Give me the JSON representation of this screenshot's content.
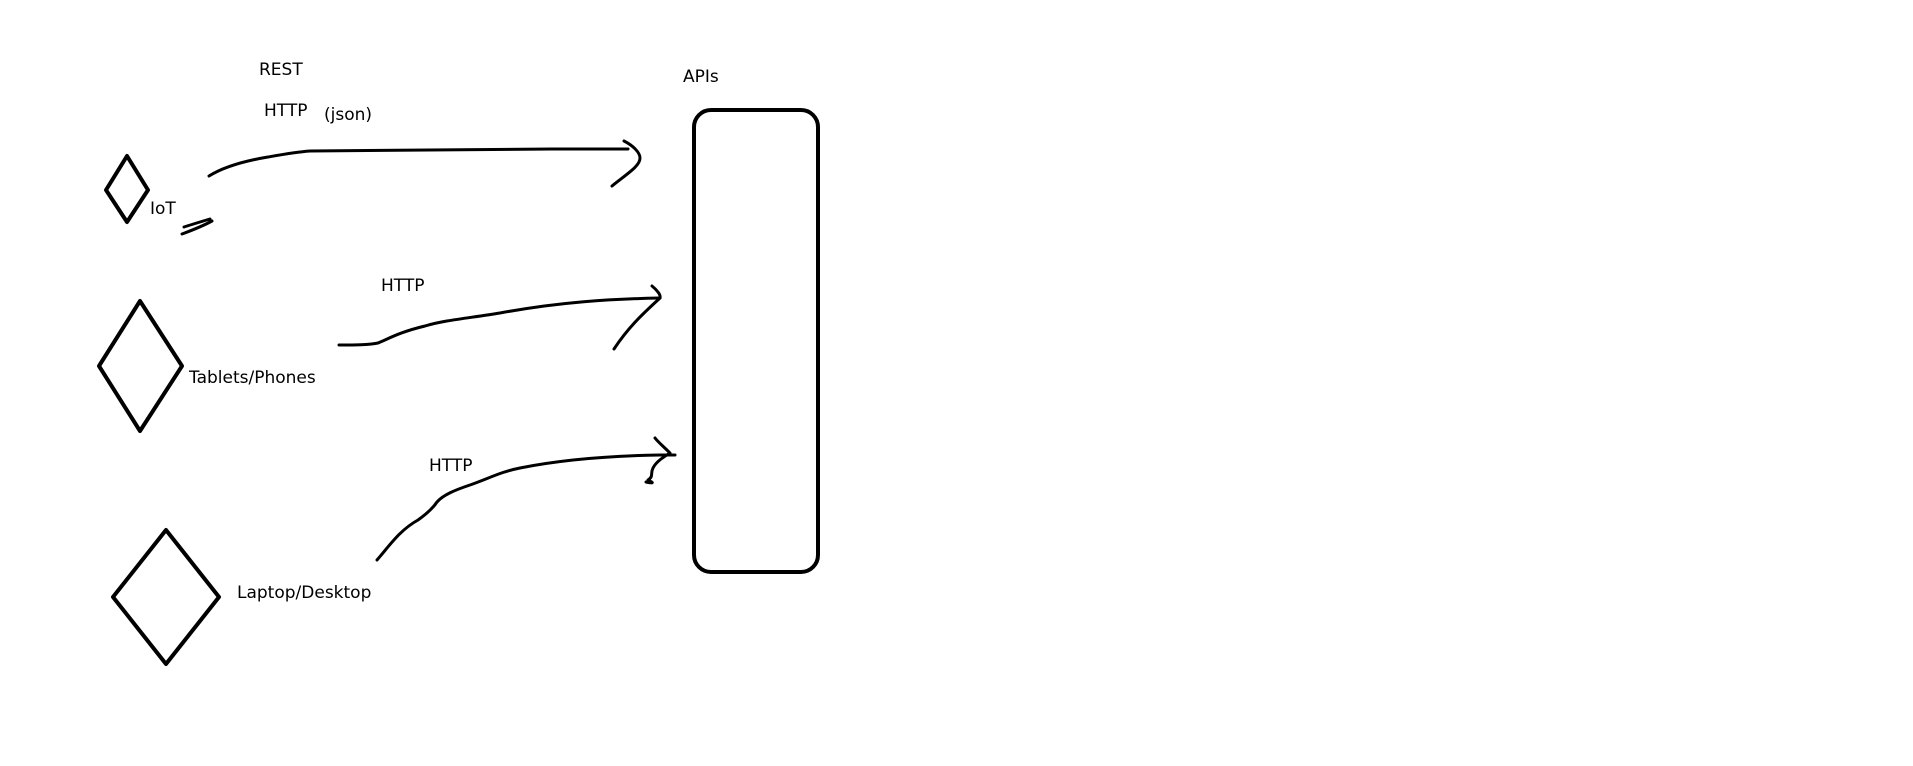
{
  "diagram": {
    "target": {
      "label": "APIs"
    },
    "protocol_labels": {
      "top_rest": "REST",
      "top_http": "HTTP",
      "top_json": "(json)",
      "middle_http": "HTTP",
      "bottom_http": "HTTP"
    },
    "devices": [
      {
        "label": "IoT"
      },
      {
        "label": "Tablets/Phones"
      },
      {
        "label": "Laptop/Desktop"
      }
    ]
  }
}
